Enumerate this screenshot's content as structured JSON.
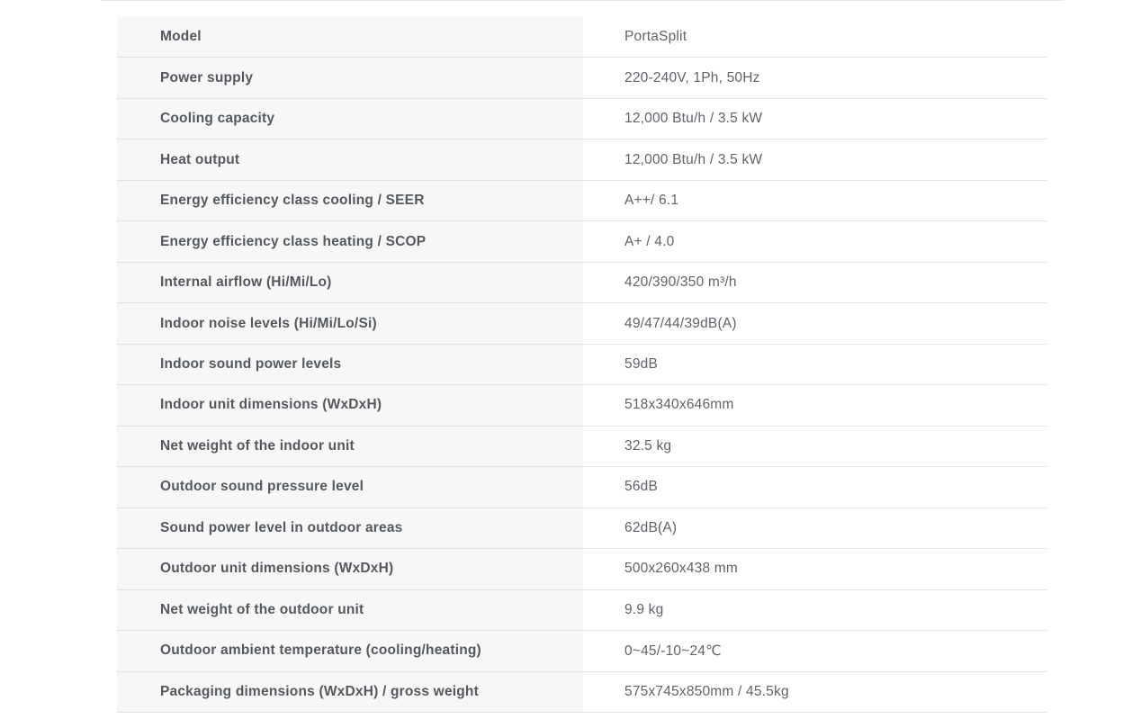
{
  "page": {
    "type": "product-specification-table",
    "product_name": "PortaSplit"
  },
  "colors": {
    "page_background": "#ffffff",
    "label_cell_background": "#f7f7f7",
    "value_cell_background": "#ffffff",
    "row_border": "#e2e2e2",
    "label_text": "#54595f",
    "value_text": "#5f646a"
  },
  "table": {
    "columns": [
      "label",
      "value"
    ],
    "rows": [
      {
        "label": "Model",
        "value": "PortaSplit"
      },
      {
        "label": "Power supply",
        "value": "220-240V, 1Ph, 50Hz"
      },
      {
        "label": "Cooling capacity",
        "value": "12,000 Btu/h / 3.5 kW"
      },
      {
        "label": "Heat output",
        "value": "12,000 Btu/h / 3.5 kW"
      },
      {
        "label": "Energy efficiency class cooling / SEER",
        "value": "A++/ 6.1"
      },
      {
        "label": "Energy efficiency class heating / SCOP",
        "value": "A+ / 4.0"
      },
      {
        "label": "Internal airflow (Hi/Mi/Lo)",
        "value": "420/390/350 m³/h"
      },
      {
        "label": "Indoor noise levels (Hi/Mi/Lo/Si)",
        "value": "49/47/44/39dB(A)"
      },
      {
        "label": "Indoor sound power levels",
        "value": "59dB"
      },
      {
        "label": "Indoor unit dimensions (WxDxH)",
        "value": "518x340x646mm"
      },
      {
        "label": "Net weight of the indoor unit",
        "value": "32.5 kg"
      },
      {
        "label": "Outdoor sound pressure level",
        "value": "56dB"
      },
      {
        "label": "Sound power level in outdoor areas",
        "value": "62dB(A)"
      },
      {
        "label": "Outdoor unit dimensions (WxDxH)",
        "value": "500x260x438 mm"
      },
      {
        "label": "Net weight of the outdoor unit",
        "value": "9.9 kg"
      },
      {
        "label": "Outdoor ambient temperature (cooling/heating)",
        "value": "0~45/-10~24℃"
      },
      {
        "label": "Packaging dimensions (WxDxH) / gross weight",
        "value": "575x745x850mm / 45.5kg"
      }
    ]
  }
}
